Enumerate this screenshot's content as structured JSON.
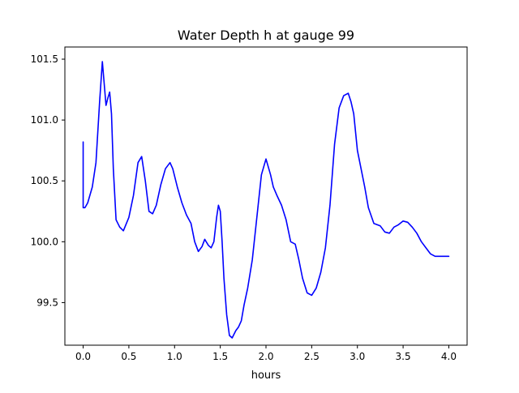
{
  "chart_data": {
    "type": "line",
    "title": "Water Depth h at gauge 99",
    "xlabel": "hours",
    "ylabel": "",
    "xlim": [
      -0.2,
      4.2
    ],
    "ylim": [
      99.15,
      101.6
    ],
    "x_ticks": [
      {
        "value": 0.0,
        "label": "0.0"
      },
      {
        "value": 0.5,
        "label": "0.5"
      },
      {
        "value": 1.0,
        "label": "1.0"
      },
      {
        "value": 1.5,
        "label": "1.5"
      },
      {
        "value": 2.0,
        "label": "2.0"
      },
      {
        "value": 2.5,
        "label": "2.5"
      },
      {
        "value": 3.0,
        "label": "3.0"
      },
      {
        "value": 3.5,
        "label": "3.5"
      },
      {
        "value": 4.0,
        "label": "4.0"
      }
    ],
    "y_ticks": [
      {
        "value": 99.5,
        "label": "99.5"
      },
      {
        "value": 100.0,
        "label": "100.0"
      },
      {
        "value": 100.5,
        "label": "100.5"
      },
      {
        "value": 101.0,
        "label": "101.0"
      },
      {
        "value": 101.5,
        "label": "101.5"
      }
    ],
    "grid": false,
    "series": [
      {
        "color": "#0000ff",
        "x": [
          0.0,
          0.0,
          0.02,
          0.05,
          0.1,
          0.14,
          0.18,
          0.21,
          0.23,
          0.25,
          0.27,
          0.29,
          0.31,
          0.33,
          0.36,
          0.4,
          0.44,
          0.5,
          0.55,
          0.6,
          0.64,
          0.68,
          0.72,
          0.76,
          0.8,
          0.85,
          0.9,
          0.95,
          0.98,
          1.03,
          1.08,
          1.13,
          1.18,
          1.22,
          1.26,
          1.3,
          1.33,
          1.37,
          1.4,
          1.43,
          1.46,
          1.48,
          1.5,
          1.52,
          1.54,
          1.57,
          1.6,
          1.63,
          1.67,
          1.7,
          1.73,
          1.76,
          1.8,
          1.85,
          1.9,
          1.95,
          2.0,
          2.05,
          2.08,
          2.12,
          2.17,
          2.22,
          2.27,
          2.32,
          2.36,
          2.4,
          2.45,
          2.5,
          2.55,
          2.6,
          2.65,
          2.7,
          2.75,
          2.8,
          2.85,
          2.9,
          2.93,
          2.96,
          2.98,
          3.0,
          3.04,
          3.08,
          3.12,
          3.18,
          3.25,
          3.3,
          3.35,
          3.4,
          3.45,
          3.5,
          3.55,
          3.6,
          3.65,
          3.7,
          3.75,
          3.8,
          3.85,
          3.9,
          3.95,
          4.0
        ],
        "y": [
          100.82,
          100.28,
          100.28,
          100.32,
          100.45,
          100.65,
          101.15,
          101.48,
          101.3,
          101.12,
          101.18,
          101.23,
          101.05,
          100.6,
          100.18,
          100.12,
          100.09,
          100.2,
          100.38,
          100.65,
          100.7,
          100.5,
          100.25,
          100.23,
          100.3,
          100.47,
          100.6,
          100.65,
          100.6,
          100.45,
          100.32,
          100.22,
          100.15,
          100.0,
          99.92,
          99.96,
          100.02,
          99.97,
          99.95,
          100.0,
          100.2,
          100.3,
          100.25,
          100.0,
          99.7,
          99.4,
          99.23,
          99.21,
          99.27,
          99.3,
          99.35,
          99.48,
          99.62,
          99.85,
          100.2,
          100.55,
          100.68,
          100.55,
          100.45,
          100.38,
          100.3,
          100.18,
          100.0,
          99.98,
          99.85,
          99.7,
          99.58,
          99.56,
          99.62,
          99.75,
          99.95,
          100.3,
          100.8,
          101.1,
          101.2,
          101.22,
          101.15,
          101.05,
          100.9,
          100.75,
          100.6,
          100.45,
          100.28,
          100.15,
          100.13,
          100.08,
          100.07,
          100.12,
          100.14,
          100.17,
          100.16,
          100.12,
          100.07,
          100.0,
          99.95,
          99.9,
          99.88,
          99.88,
          99.88,
          99.88
        ]
      }
    ]
  }
}
